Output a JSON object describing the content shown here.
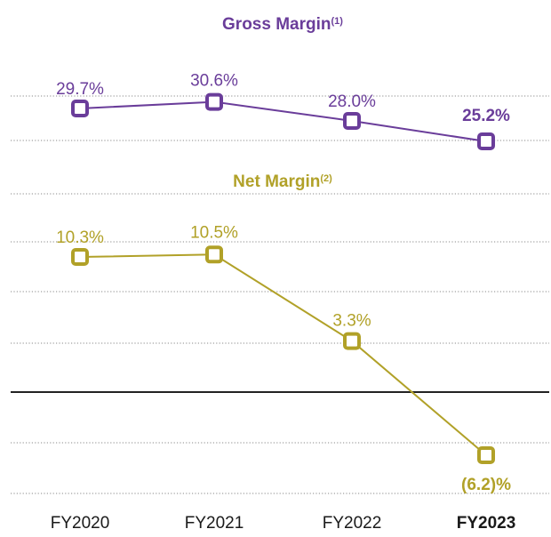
{
  "chart_data": [
    {
      "type": "line",
      "title": "Gross Margin",
      "title_sup": "(1)",
      "categories": [
        "FY2020",
        "FY2021",
        "FY2022",
        "FY2023"
      ],
      "values": [
        29.7,
        30.6,
        28.0,
        25.2
      ],
      "labels": [
        "29.7%",
        "30.6%",
        "28.0%",
        "25.2%"
      ],
      "highlight_index": 3,
      "color": "#6a3d9a",
      "ylim": [
        23.0,
        33.0
      ]
    },
    {
      "type": "line",
      "title": "Net Margin",
      "title_sup": "(2)",
      "categories": [
        "FY2020",
        "FY2021",
        "FY2022",
        "FY2023"
      ],
      "values": [
        10.3,
        10.5,
        3.3,
        -6.2
      ],
      "labels": [
        "10.3%",
        "10.5%",
        "3.3%",
        "(6.2)%"
      ],
      "highlight_index": 3,
      "color": "#b1a128",
      "zero_line": true
    }
  ],
  "x_axis": {
    "ticks": [
      "FY2020",
      "FY2021",
      "FY2022",
      "FY2023"
    ],
    "bold_index": 3
  },
  "colors": {
    "gridline": "#888888",
    "zero_line": "#222222",
    "marker_fill": "#ffffff"
  }
}
